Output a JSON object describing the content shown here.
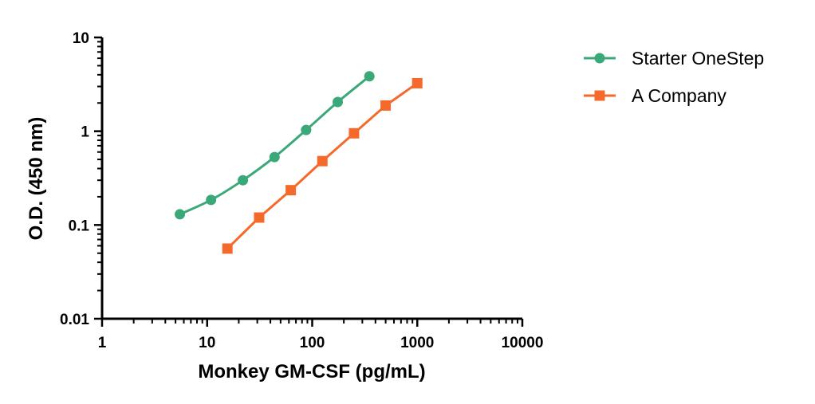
{
  "chart_data": {
    "type": "line",
    "xlabel": "Monkey GM-CSF (pg/mL)",
    "ylabel": "O.D. (450 nm)",
    "x_scale": "log",
    "y_scale": "log",
    "xlim": [
      1,
      10000
    ],
    "ylim": [
      0.01,
      10
    ],
    "x_ticks": [
      "1",
      "10",
      "100",
      "1000",
      "10000"
    ],
    "y_ticks": [
      "0.01",
      "0.1",
      "1",
      "10"
    ],
    "legend_position": "right",
    "grid": false,
    "series": [
      {
        "name": "Starter OneStep",
        "color": "#3aa878",
        "marker": "circle",
        "x": [
          5.5,
          10.9,
          21.9,
          43.8,
          87.5,
          175,
          350
        ],
        "y": [
          0.13,
          0.185,
          0.3,
          0.53,
          1.03,
          2.05,
          3.85
        ]
      },
      {
        "name": "A Company",
        "color": "#f56a2a",
        "marker": "square",
        "x": [
          15.6,
          31.25,
          62.5,
          125,
          250,
          500,
          1000
        ],
        "y": [
          0.056,
          0.12,
          0.235,
          0.48,
          0.95,
          1.88,
          3.25
        ]
      }
    ]
  }
}
